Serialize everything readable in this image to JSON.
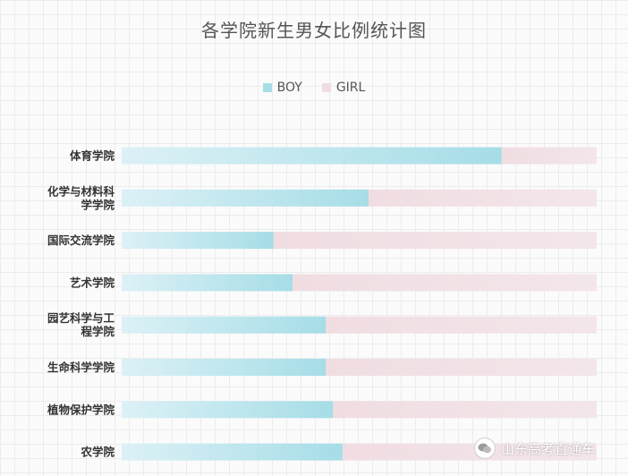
{
  "chart_data": {
    "type": "bar",
    "orientation": "horizontal",
    "stacked": true,
    "title": "各学院新生男女比例统计图",
    "categories": [
      "体育学院",
      "化学与材料科学学院",
      "国际交流学院",
      "艺术学院",
      "园艺科学与工程学院",
      "生命科学学院",
      "植物保护学院",
      "农学院"
    ],
    "category_lines": [
      [
        "体育学院"
      ],
      [
        "化学与材料科",
        "学学院"
      ],
      [
        "国际交流学院"
      ],
      [
        "艺术学院"
      ],
      [
        "园艺科学与工",
        "程学院"
      ],
      [
        "生命科学学院"
      ],
      [
        "植物保护学院"
      ],
      [
        "农学院"
      ]
    ],
    "series": [
      {
        "name": "BOY",
        "values": [
          0.8,
          0.52,
          0.32,
          0.36,
          0.43,
          0.43,
          0.445,
          0.465
        ],
        "color": "#a6dde7"
      },
      {
        "name": "GIRL",
        "values": [
          0.2,
          0.48,
          0.68,
          0.64,
          0.57,
          0.57,
          0.555,
          0.535
        ],
        "color": "#f0dde2"
      }
    ],
    "xlim": [
      0,
      1
    ],
    "legend": "top-center",
    "grid": false
  },
  "watermark": {
    "text": "山东高考直通车"
  }
}
